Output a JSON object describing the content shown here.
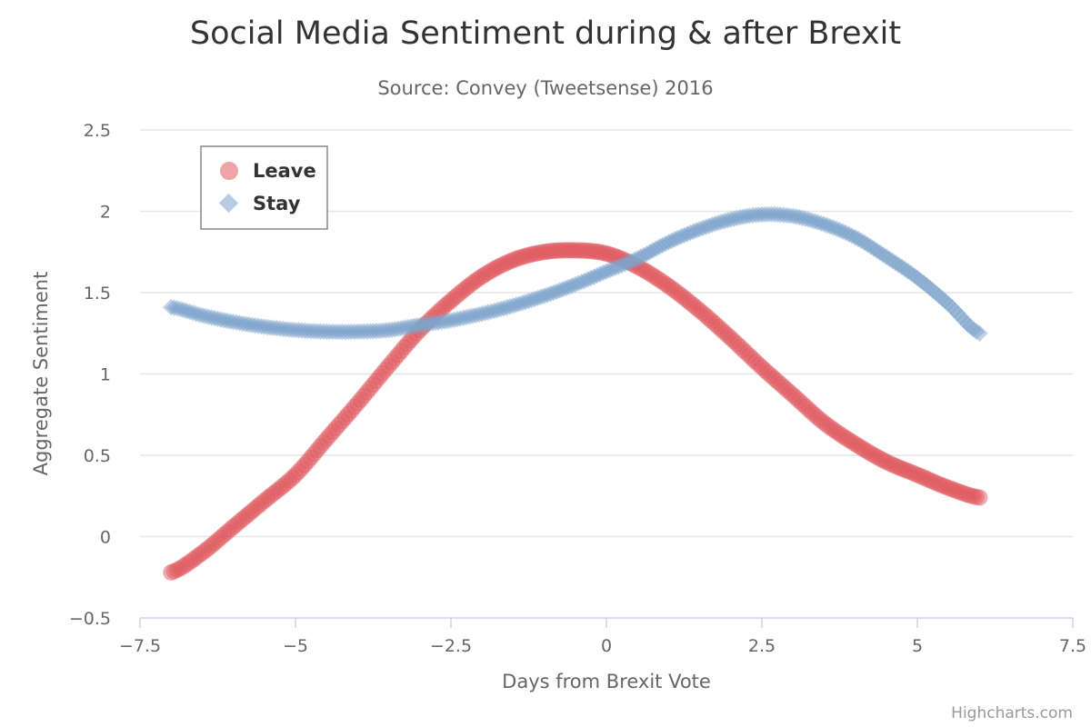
{
  "chart_data": {
    "type": "scatter",
    "title": "Social Media Sentiment during & after Brexit",
    "subtitle": "Source: Convey (Tweetsense) 2016",
    "xlabel": "Days from Brexit Vote",
    "ylabel": "Aggregate Sentiment",
    "xlim": [
      -7.5,
      7.5
    ],
    "ylim": [
      -0.5,
      2.5
    ],
    "xticks": [
      -7.5,
      -5,
      -2.5,
      0,
      2.5,
      5,
      7.5
    ],
    "xtick_labels": [
      "−7.5",
      "−5",
      "−2.5",
      "0",
      "2.5",
      "5",
      "7.5"
    ],
    "yticks": [
      -0.5,
      0,
      0.5,
      1,
      1.5,
      2,
      2.5
    ],
    "ytick_labels": [
      "−0.5",
      "0",
      "0.5",
      "1",
      "1.5",
      "2",
      "2.5"
    ],
    "grid": true,
    "legend_position": "top-left",
    "series": [
      {
        "name": "Leave",
        "marker": "circle",
        "color": "#e05a5f",
        "x": [
          -7.0,
          -6.5,
          -6.0,
          -5.5,
          -5.0,
          -4.5,
          -4.0,
          -3.5,
          -3.0,
          -2.5,
          -2.0,
          -1.5,
          -1.0,
          -0.5,
          0.0,
          0.5,
          1.0,
          1.5,
          2.0,
          2.5,
          3.0,
          3.5,
          4.0,
          4.5,
          5.0,
          5.5,
          6.0
        ],
        "y": [
          -0.22,
          -0.1,
          0.06,
          0.22,
          0.38,
          0.6,
          0.82,
          1.05,
          1.27,
          1.45,
          1.6,
          1.7,
          1.75,
          1.76,
          1.74,
          1.66,
          1.54,
          1.39,
          1.22,
          1.04,
          0.87,
          0.7,
          0.57,
          0.46,
          0.38,
          0.3,
          0.24
        ]
      },
      {
        "name": "Stay",
        "marker": "diamond",
        "color": "#7ea3cc",
        "x": [
          -7.0,
          -6.5,
          -6.0,
          -5.5,
          -5.0,
          -4.5,
          -4.0,
          -3.5,
          -3.0,
          -2.5,
          -2.0,
          -1.5,
          -1.0,
          -0.5,
          0.0,
          0.5,
          1.0,
          1.5,
          2.0,
          2.5,
          3.0,
          3.5,
          4.0,
          4.5,
          5.0,
          5.5,
          6.0
        ],
        "y": [
          1.41,
          1.36,
          1.32,
          1.29,
          1.27,
          1.26,
          1.26,
          1.27,
          1.3,
          1.33,
          1.37,
          1.42,
          1.48,
          1.55,
          1.63,
          1.71,
          1.81,
          1.89,
          1.95,
          1.98,
          1.97,
          1.92,
          1.84,
          1.72,
          1.59,
          1.43,
          1.25
        ]
      }
    ]
  },
  "credits": "Highcharts.com"
}
